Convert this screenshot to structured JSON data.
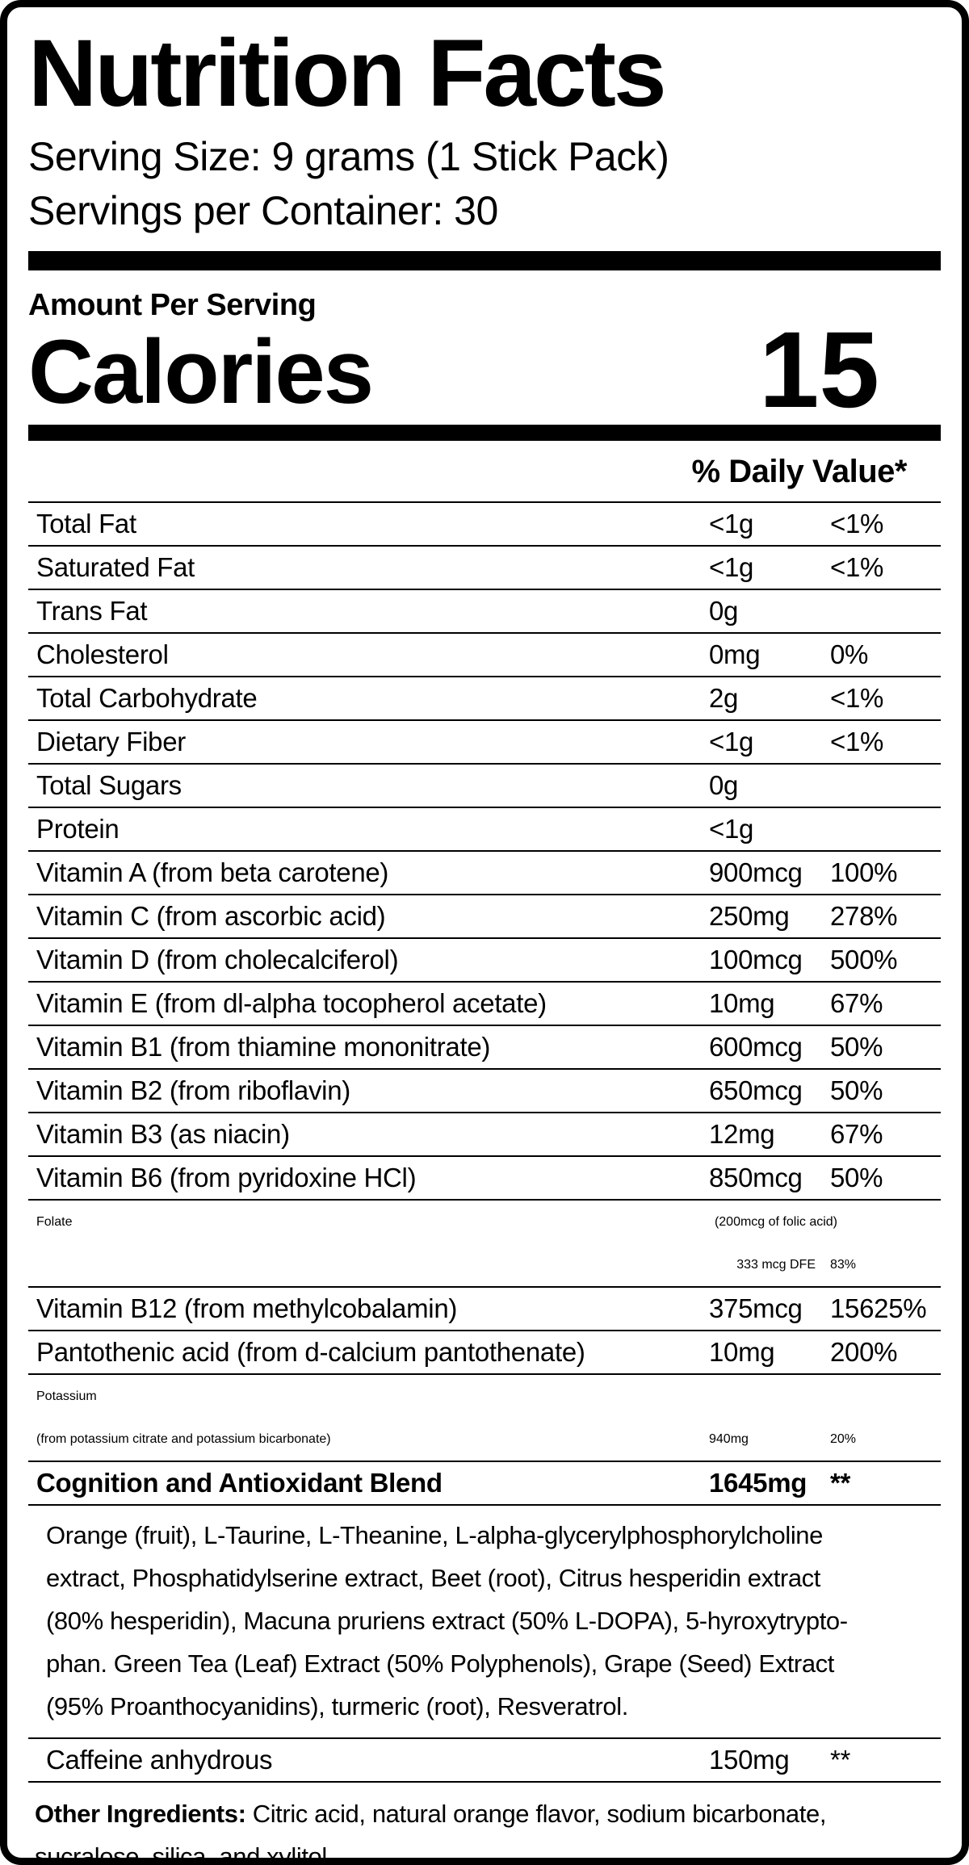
{
  "label": {
    "title": "Nutrition Facts",
    "serving_size": "Serving Size: 9 grams (1 Stick Pack)",
    "servings_per_container": "Servings per Container: 30",
    "amount_per_serving": "Amount Per Serving",
    "calories": {
      "label": "Calories",
      "value": "15"
    },
    "daily_value_header": "% Daily Value*",
    "colors": {
      "ink": "#000000",
      "paper": "#ffffff"
    },
    "table": {
      "rows": [
        {
          "type": "simple",
          "name": "Total Fat",
          "amount": "<1g",
          "dv": "<1%"
        },
        {
          "type": "simple",
          "name": "Saturated Fat",
          "amount": "<1g",
          "dv": "<1%"
        },
        {
          "type": "simple",
          "name": "Trans Fat",
          "amount": "0g",
          "dv": ""
        },
        {
          "type": "simple",
          "name": "Cholesterol",
          "amount": "0mg",
          "dv": "0%"
        },
        {
          "type": "simple",
          "name": "Total Carbohydrate",
          "amount": "2g",
          "dv": "<1%"
        },
        {
          "type": "simple",
          "name": "Dietary Fiber",
          "amount": "<1g",
          "dv": "<1%"
        },
        {
          "type": "simple",
          "name": "Total Sugars",
          "amount": "0g",
          "dv": ""
        },
        {
          "type": "simple",
          "name": "Protein",
          "amount": "<1g",
          "dv": ""
        },
        {
          "type": "simple",
          "name": "Vitamin A (from beta carotene)",
          "amount": "900mcg",
          "dv": "100%"
        },
        {
          "type": "simple",
          "name": "Vitamin C (from ascorbic acid)",
          "amount": "250mg",
          "dv": "278%"
        },
        {
          "type": "simple",
          "name": "Vitamin D (from cholecalciferol)",
          "amount": "100mcg",
          "dv": "500%"
        },
        {
          "type": "simple",
          "name": "Vitamin E (from dl-alpha tocopherol acetate)",
          "amount": "10mg",
          "dv": "67%"
        },
        {
          "type": "simple",
          "name": "Vitamin B1 (from thiamine mononitrate)",
          "amount": "600mcg",
          "dv": "50%"
        },
        {
          "type": "simple",
          "name": "Vitamin B2 (from riboflavin)",
          "amount": "650mcg",
          "dv": "50%"
        },
        {
          "type": "simple",
          "name": "Vitamin B3 (as niacin)",
          "amount": "12mg",
          "dv": "67%"
        },
        {
          "type": "simple",
          "name": "Vitamin B6 (from pyridoxine HCl)",
          "amount": "850mcg",
          "dv": "50%"
        },
        {
          "type": "folate",
          "name": "Folate",
          "note": "(200mcg of folic acid)",
          "amount": "333 mcg DFE",
          "dv": "83%"
        },
        {
          "type": "simple",
          "name": "Vitamin B12 (from methylcobalamin)",
          "amount": "375mcg",
          "dv": "15625%"
        },
        {
          "type": "simple",
          "name": "Pantothenic acid (from d-calcium pantothenate)",
          "amount": "10mg",
          "dv": "200%"
        },
        {
          "type": "twoline",
          "name": "Potassium",
          "name2": "(from potassium citrate and potassium bicarbonate)",
          "amount": "940mg",
          "dv": "20%"
        },
        {
          "type": "blend",
          "name": "Cognition and Antioxidant Blend",
          "amount": "1645mg",
          "dv": "**"
        },
        {
          "type": "desc",
          "lines": [
            "Orange (fruit), L-Taurine, L-Theanine, L-alpha-glycerylphosphorylcholine",
            "extract, Phosphatidylserine extract, Beet (root), Citrus hesperidin extract",
            "(80% hesperidin), Macuna pruriens extract (50% L-DOPA), 5-hyroxytrypto-",
            "phan. Green Tea (Leaf) Extract (50% Polyphenols), Grape (Seed) Extract",
            "(95% Proanthocyanidins), turmeric (root), Resveratrol."
          ]
        },
        {
          "type": "caffeine",
          "name": "Caffeine anhydrous",
          "amount": "150mg",
          "dv": "**"
        },
        {
          "type": "other",
          "prefix": "Other Ingredients:",
          "lines": [
            " Citric acid, natural orange flavor, sodium bicarbonate,",
            "sucralose, silica, and xylitol."
          ]
        }
      ]
    }
  }
}
